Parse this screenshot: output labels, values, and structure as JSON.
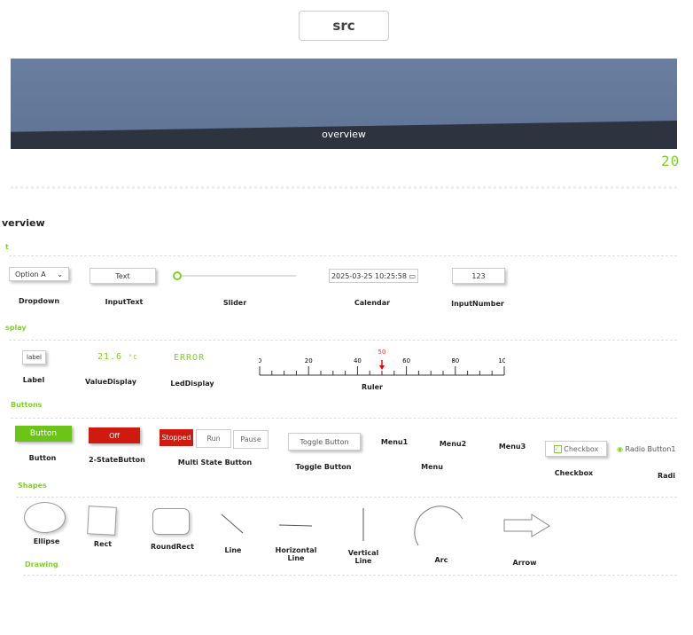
{
  "header": {
    "src_label": "src"
  },
  "banner": {
    "label": "overview",
    "led_value": "20"
  },
  "title": "verview",
  "sections": {
    "input": "t",
    "display": "splay",
    "buttons": "Buttons",
    "shapes": "Shapes",
    "drawing": "Drawing"
  },
  "input": {
    "dropdown_value": "Option A",
    "dropdown_label": "Dropdown",
    "text_value": "Text",
    "text_label": "InputText",
    "slider_label": "Slider",
    "slider_value": 0,
    "calendar_value": "2025-03-25 10:25:58",
    "calendar_label": "Calendar",
    "number_value": "123",
    "number_label": "InputNumber"
  },
  "display": {
    "label_value": "label",
    "label_label": "Label",
    "value_display": "21.6",
    "value_unit": "°C",
    "value_label": "ValueDisplay",
    "led_value": "ERROR",
    "led_label": "LedDisplay",
    "ruler_ticks": [
      "0",
      "20",
      "40",
      "60",
      "80",
      "100"
    ],
    "ruler_marker": "50",
    "ruler_label": "Ruler"
  },
  "buttons": {
    "button": "Button",
    "button_label": "Button",
    "two_state": "Off",
    "two_state_label": "2-StateButton",
    "multi": [
      "Stopped",
      "Run",
      "Pause"
    ],
    "multi_label": "Multi State Button",
    "toggle": "Toggle Button",
    "toggle_label": "Toggle Button",
    "menu": [
      "Menu1",
      "Menu2",
      "Menu3"
    ],
    "menu_label": "Menu",
    "checkbox": "Checkbox",
    "checkbox_label": "Checkbox",
    "radio": "Radio Button1",
    "radio_label": "Radi"
  },
  "shapes": [
    "Ellipse",
    "Rect",
    "RoundRect",
    "Line",
    "Horizontal Line",
    "Vertical Line",
    "Arc",
    "Arrow"
  ],
  "colors": {
    "accent": "#7ed321",
    "danger": "#d0190f"
  }
}
